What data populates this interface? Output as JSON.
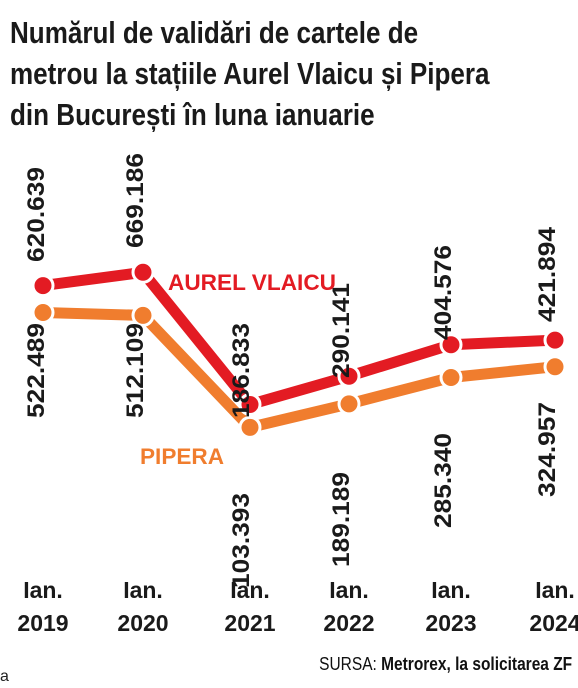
{
  "title_lines": [
    "Numărul de validări de cartele de",
    "metrou la stațiile Aurel Vlaicu și Pipera",
    "din București în luna ianuarie"
  ],
  "source": {
    "label": "SURSA:",
    "text": "Metrorex, la solicitarea ZF"
  },
  "corner_mark": "a",
  "chart_data": {
    "type": "line",
    "title": "Numărul de validări de cartele de metrou la stațiile Aurel Vlaicu și Pipera din București în luna ianuarie",
    "categories": [
      "Ian. 2019",
      "Ian. 2020",
      "Ian. 2021",
      "Ian. 2022",
      "Ian. 2023",
      "Ian. 2024"
    ],
    "category_lines": [
      [
        "Ian.",
        "2019"
      ],
      [
        "Ian.",
        "2020"
      ],
      [
        "Ian.",
        "2021"
      ],
      [
        "Ian.",
        "2022"
      ],
      [
        "Ian.",
        "2023"
      ],
      [
        "Ian.",
        "2024"
      ]
    ],
    "series": [
      {
        "name": "AUREL VLAICU",
        "color": "#e31b23",
        "values": [
          620639,
          669186,
          186833,
          290141,
          404576,
          421894
        ],
        "labels": [
          "620.639",
          "669.186",
          "186.833",
          "290.141",
          "404.576",
          "421.894"
        ]
      },
      {
        "name": "PIPERA",
        "color": "#f07d2e",
        "values": [
          522489,
          512109,
          103393,
          189189,
          285340,
          324957
        ],
        "labels": [
          "522.489",
          "512.109",
          "103.393",
          "189.189",
          "285.340",
          "324.957"
        ]
      }
    ],
    "grid": false,
    "legend": "inline labels next to lines"
  }
}
